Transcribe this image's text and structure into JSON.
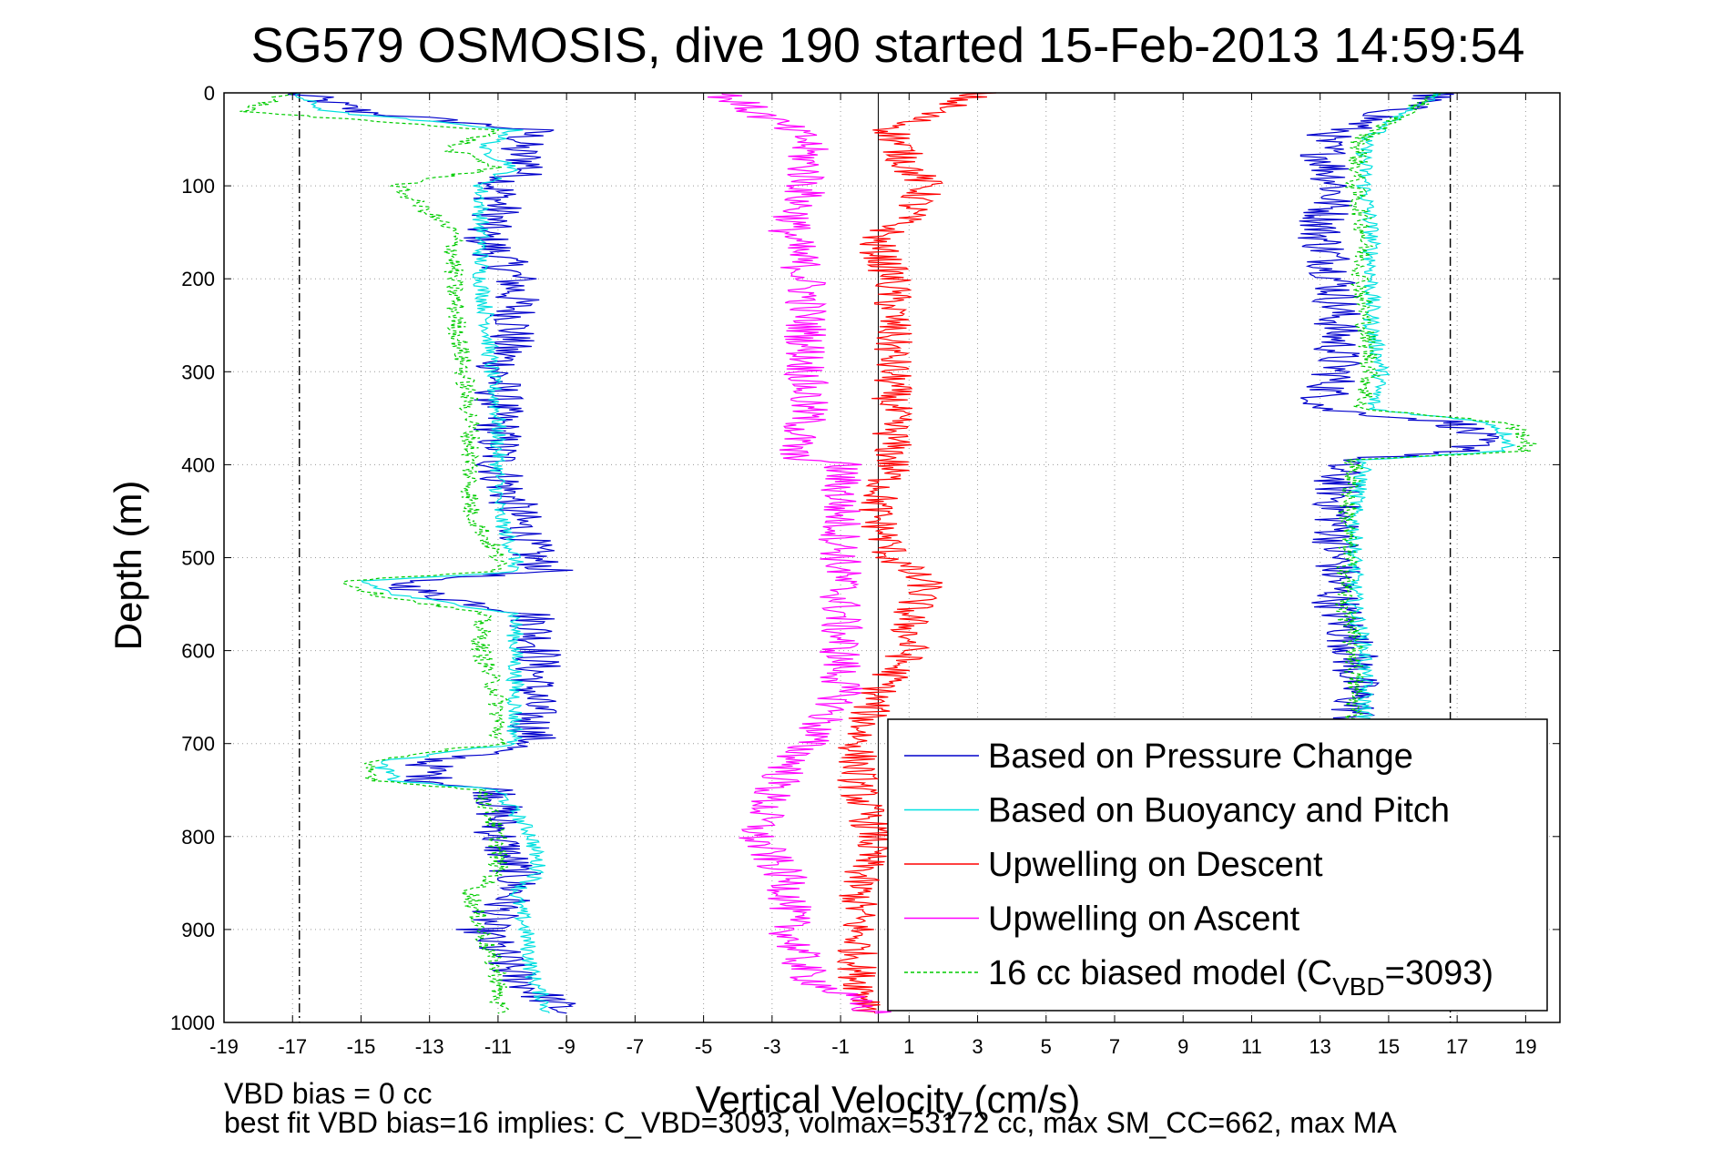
{
  "chart_data": {
    "type": "line",
    "title": "SG579 OSMOSIS, dive 190 started 15-Feb-2013 14:59:54",
    "xlabel": "Vertical Velocity (cm/s)",
    "ylabel": "Depth (m)",
    "xlim": [
      -19,
      20
    ],
    "ylim": [
      1000,
      0
    ],
    "y_reversed": true,
    "grid": true,
    "x_ticks": [
      -19,
      -17,
      -15,
      -13,
      -11,
      -9,
      -7,
      -5,
      -3,
      -1,
      1,
      3,
      5,
      7,
      9,
      11,
      13,
      15,
      17,
      19
    ],
    "y_ticks": [
      0,
      100,
      200,
      300,
      400,
      500,
      600,
      700,
      800,
      900,
      1000
    ],
    "vertical_lines": [
      {
        "x": -16.8,
        "style": "dash-dot"
      },
      {
        "x": 16.8,
        "style": "dash-dot"
      },
      {
        "x": 0.1,
        "style": "solid"
      }
    ],
    "legend_position": "bottom-right",
    "series": [
      {
        "name": "Based on Pressure Change",
        "color": "#0000cc",
        "style": "solid",
        "branches": [
          {
            "depth": [
              0,
              20,
              40,
              60,
              80,
              100,
              130,
              150,
              200,
              250,
              300,
              350,
              400,
              450,
              500,
              515,
              525,
              540,
              560,
              600,
              650,
              700,
              720,
              740,
              750,
              800,
              840,
              860,
              900,
              950,
              990
            ],
            "x": [
              -17,
              -15,
              -10,
              -10.5,
              -10,
              -11,
              -11,
              -11.5,
              -10.5,
              -10.5,
              -11,
              -11,
              -11,
              -10.5,
              -10,
              -9.5,
              -14,
              -13,
              -10,
              -9.8,
              -10,
              -10,
              -13,
              -13,
              -11,
              -11,
              -10.5,
              -10.5,
              -11.5,
              -10.5,
              -9
            ]
          },
          {
            "depth": [
              0,
              50,
              100,
              150,
              200,
              250,
              300,
              340,
              355,
              370,
              385,
              395,
              450,
              500,
              550,
              600,
              650,
              680
            ],
            "x": [
              16.5,
              13,
              13.5,
              13,
              13.5,
              13.5,
              13.5,
              13,
              17,
              17.5,
              17.5,
              13.5,
              13.5,
              13.5,
              13.5,
              14,
              14,
              14
            ]
          }
        ]
      },
      {
        "name": "Based on Buoyancy and Pitch",
        "color": "#00e0e0",
        "style": "solid",
        "branches": [
          {
            "depth": [
              0,
              20,
              40,
              60,
              80,
              100,
              150,
              200,
              250,
              300,
              350,
              400,
              450,
              500,
              515,
              525,
              540,
              560,
              600,
              650,
              700,
              720,
              740,
              750,
              800,
              840,
              860,
              900,
              950,
              990
            ],
            "x": [
              -17,
              -16,
              -10.5,
              -11.5,
              -10.5,
              -11.5,
              -11.5,
              -11.5,
              -11.3,
              -11.2,
              -11,
              -11,
              -11,
              -10.5,
              -10.5,
              -15,
              -14,
              -10.5,
              -10.5,
              -10.5,
              -10.5,
              -14.5,
              -14,
              -11,
              -10,
              -9.8,
              -10.5,
              -10.2,
              -10,
              -9.5
            ]
          },
          {
            "depth": [
              0,
              50,
              100,
              150,
              200,
              250,
              300,
              340,
              355,
              370,
              385,
              395,
              450,
              500,
              550,
              600,
              650,
              680
            ],
            "x": [
              16.5,
              14.3,
              14.3,
              14.5,
              14.5,
              14.5,
              14.8,
              14.5,
              18,
              18.5,
              18.5,
              14.3,
              14,
              14,
              14,
              14.3,
              14.3,
              14.3
            ]
          }
        ]
      },
      {
        "name": "Upwelling on Descent",
        "color": "#ff0000",
        "style": "solid",
        "branches": [
          {
            "depth": [
              0,
              40,
              80,
              100,
              130,
              160,
              200,
              250,
              300,
              350,
              400,
              450,
              500,
              530,
              560,
              600,
              650,
              700,
              750,
              800,
              850,
              900,
              950,
              990
            ],
            "x": [
              3,
              0.5,
              1,
              1.5,
              1,
              0,
              0.5,
              0.5,
              0.5,
              0.5,
              0.5,
              0,
              0.5,
              1.5,
              1,
              1,
              0,
              -0.5,
              -0.5,
              0,
              -0.5,
              -0.5,
              -0.5,
              0
            ]
          }
        ]
      },
      {
        "name": "Upwelling on Ascent",
        "color": "#ff00ff",
        "style": "solid",
        "branches": [
          {
            "depth": [
              0,
              50,
              100,
              150,
              200,
              250,
              300,
              350,
              390,
              400,
              450,
              500,
              550,
              600,
              650,
              700,
              750,
              800,
              850,
              900,
              950,
              990
            ],
            "x": [
              -4.5,
              -2,
              -2,
              -2.5,
              -2,
              -2,
              -2,
              -2,
              -2.5,
              -1,
              -1,
              -1,
              -1,
              -1,
              -1,
              -2,
              -3,
              -3.5,
              -2.5,
              -2.5,
              -2,
              0
            ]
          }
        ]
      },
      {
        "name": "16 cc biased model (C_VBD=3093)",
        "color": "#00cc00",
        "style": "dashed",
        "branches": [
          {
            "depth": [
              0,
              20,
              40,
              60,
              80,
              100,
              150,
              200,
              250,
              300,
              350,
              400,
              450,
              500,
              515,
              525,
              540,
              560,
              600,
              650,
              700,
              720,
              740,
              750,
              800,
              840,
              860,
              900,
              950,
              990
            ],
            "x": [
              -17,
              -18.5,
              -11,
              -12.5,
              -11,
              -14,
              -12.3,
              -12.3,
              -12.2,
              -12,
              -11.8,
              -11.8,
              -11.8,
              -11,
              -11,
              -15.5,
              -14.5,
              -11.5,
              -11.5,
              -11,
              -11,
              -15,
              -14.5,
              -11.5,
              -11,
              -11,
              -11.8,
              -11.5,
              -11,
              -11
            ]
          },
          {
            "depth": [
              0,
              50,
              100,
              150,
              200,
              250,
              300,
              340,
              355,
              370,
              385,
              395,
              450,
              500,
              550,
              600,
              650,
              680
            ],
            "x": [
              16.5,
              14.2,
              14,
              14.3,
              14.2,
              14.3,
              14.5,
              14.2,
              18.5,
              19,
              19,
              14,
              13.8,
              13.8,
              13.7,
              14,
              14,
              14
            ]
          }
        ]
      }
    ],
    "legend_entries": [
      {
        "label": "Based on Pressure Change",
        "color": "#0000cc",
        "dash": false
      },
      {
        "label": "Based on Buoyancy and Pitch",
        "color": "#00e0e0",
        "dash": false
      },
      {
        "label": "Upwelling on Descent",
        "color": "#ff0000",
        "dash": false
      },
      {
        "label": "Upwelling on Ascent",
        "color": "#ff00ff",
        "dash": false
      },
      {
        "label_main": "16 cc biased model (C",
        "label_sub": "VBD",
        "label_tail": "=3093)",
        "color": "#00cc00",
        "dash": true
      }
    ],
    "annotations": [
      "VBD bias = 0 cc",
      "best fit VBD bias=16 implies: C_VBD=3093, volmax=53172 cc, max SM_CC=662, max MA"
    ]
  }
}
